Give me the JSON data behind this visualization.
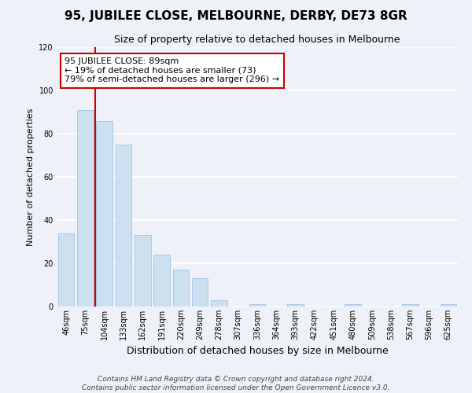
{
  "title": "95, JUBILEE CLOSE, MELBOURNE, DERBY, DE73 8GR",
  "subtitle": "Size of property relative to detached houses in Melbourne",
  "xlabel": "Distribution of detached houses by size in Melbourne",
  "ylabel": "Number of detached properties",
  "categories": [
    "46sqm",
    "75sqm",
    "104sqm",
    "133sqm",
    "162sqm",
    "191sqm",
    "220sqm",
    "249sqm",
    "278sqm",
    "307sqm",
    "336sqm",
    "364sqm",
    "393sqm",
    "422sqm",
    "451sqm",
    "480sqm",
    "509sqm",
    "538sqm",
    "567sqm",
    "596sqm",
    "625sqm"
  ],
  "values": [
    34,
    91,
    86,
    75,
    33,
    24,
    17,
    13,
    3,
    0,
    1,
    0,
    1,
    0,
    0,
    1,
    0,
    0,
    1,
    0,
    1
  ],
  "bar_color": "#cde0f0",
  "bar_edge_color": "#a8c8e8",
  "property_line_color": "#cc0000",
  "property_line_x": 1.5,
  "ylim": [
    0,
    120
  ],
  "yticks": [
    0,
    20,
    40,
    60,
    80,
    100,
    120
  ],
  "annotation_title": "95 JUBILEE CLOSE: 89sqm",
  "annotation_line1": "← 19% of detached houses are smaller (73)",
  "annotation_line2": "79% of semi-detached houses are larger (296) →",
  "annotation_box_color": "#ffffff",
  "annotation_box_edge": "#cc0000",
  "footnote1": "Contains HM Land Registry data © Crown copyright and database right 2024.",
  "footnote2": "Contains public sector information licensed under the Open Government Licence v3.0.",
  "background_color": "#eef2f8",
  "grid_color": "#ffffff",
  "title_fontsize": 11,
  "subtitle_fontsize": 9,
  "xlabel_fontsize": 9,
  "ylabel_fontsize": 8,
  "tick_fontsize": 7,
  "annotation_fontsize": 8,
  "footnote_fontsize": 6.5
}
